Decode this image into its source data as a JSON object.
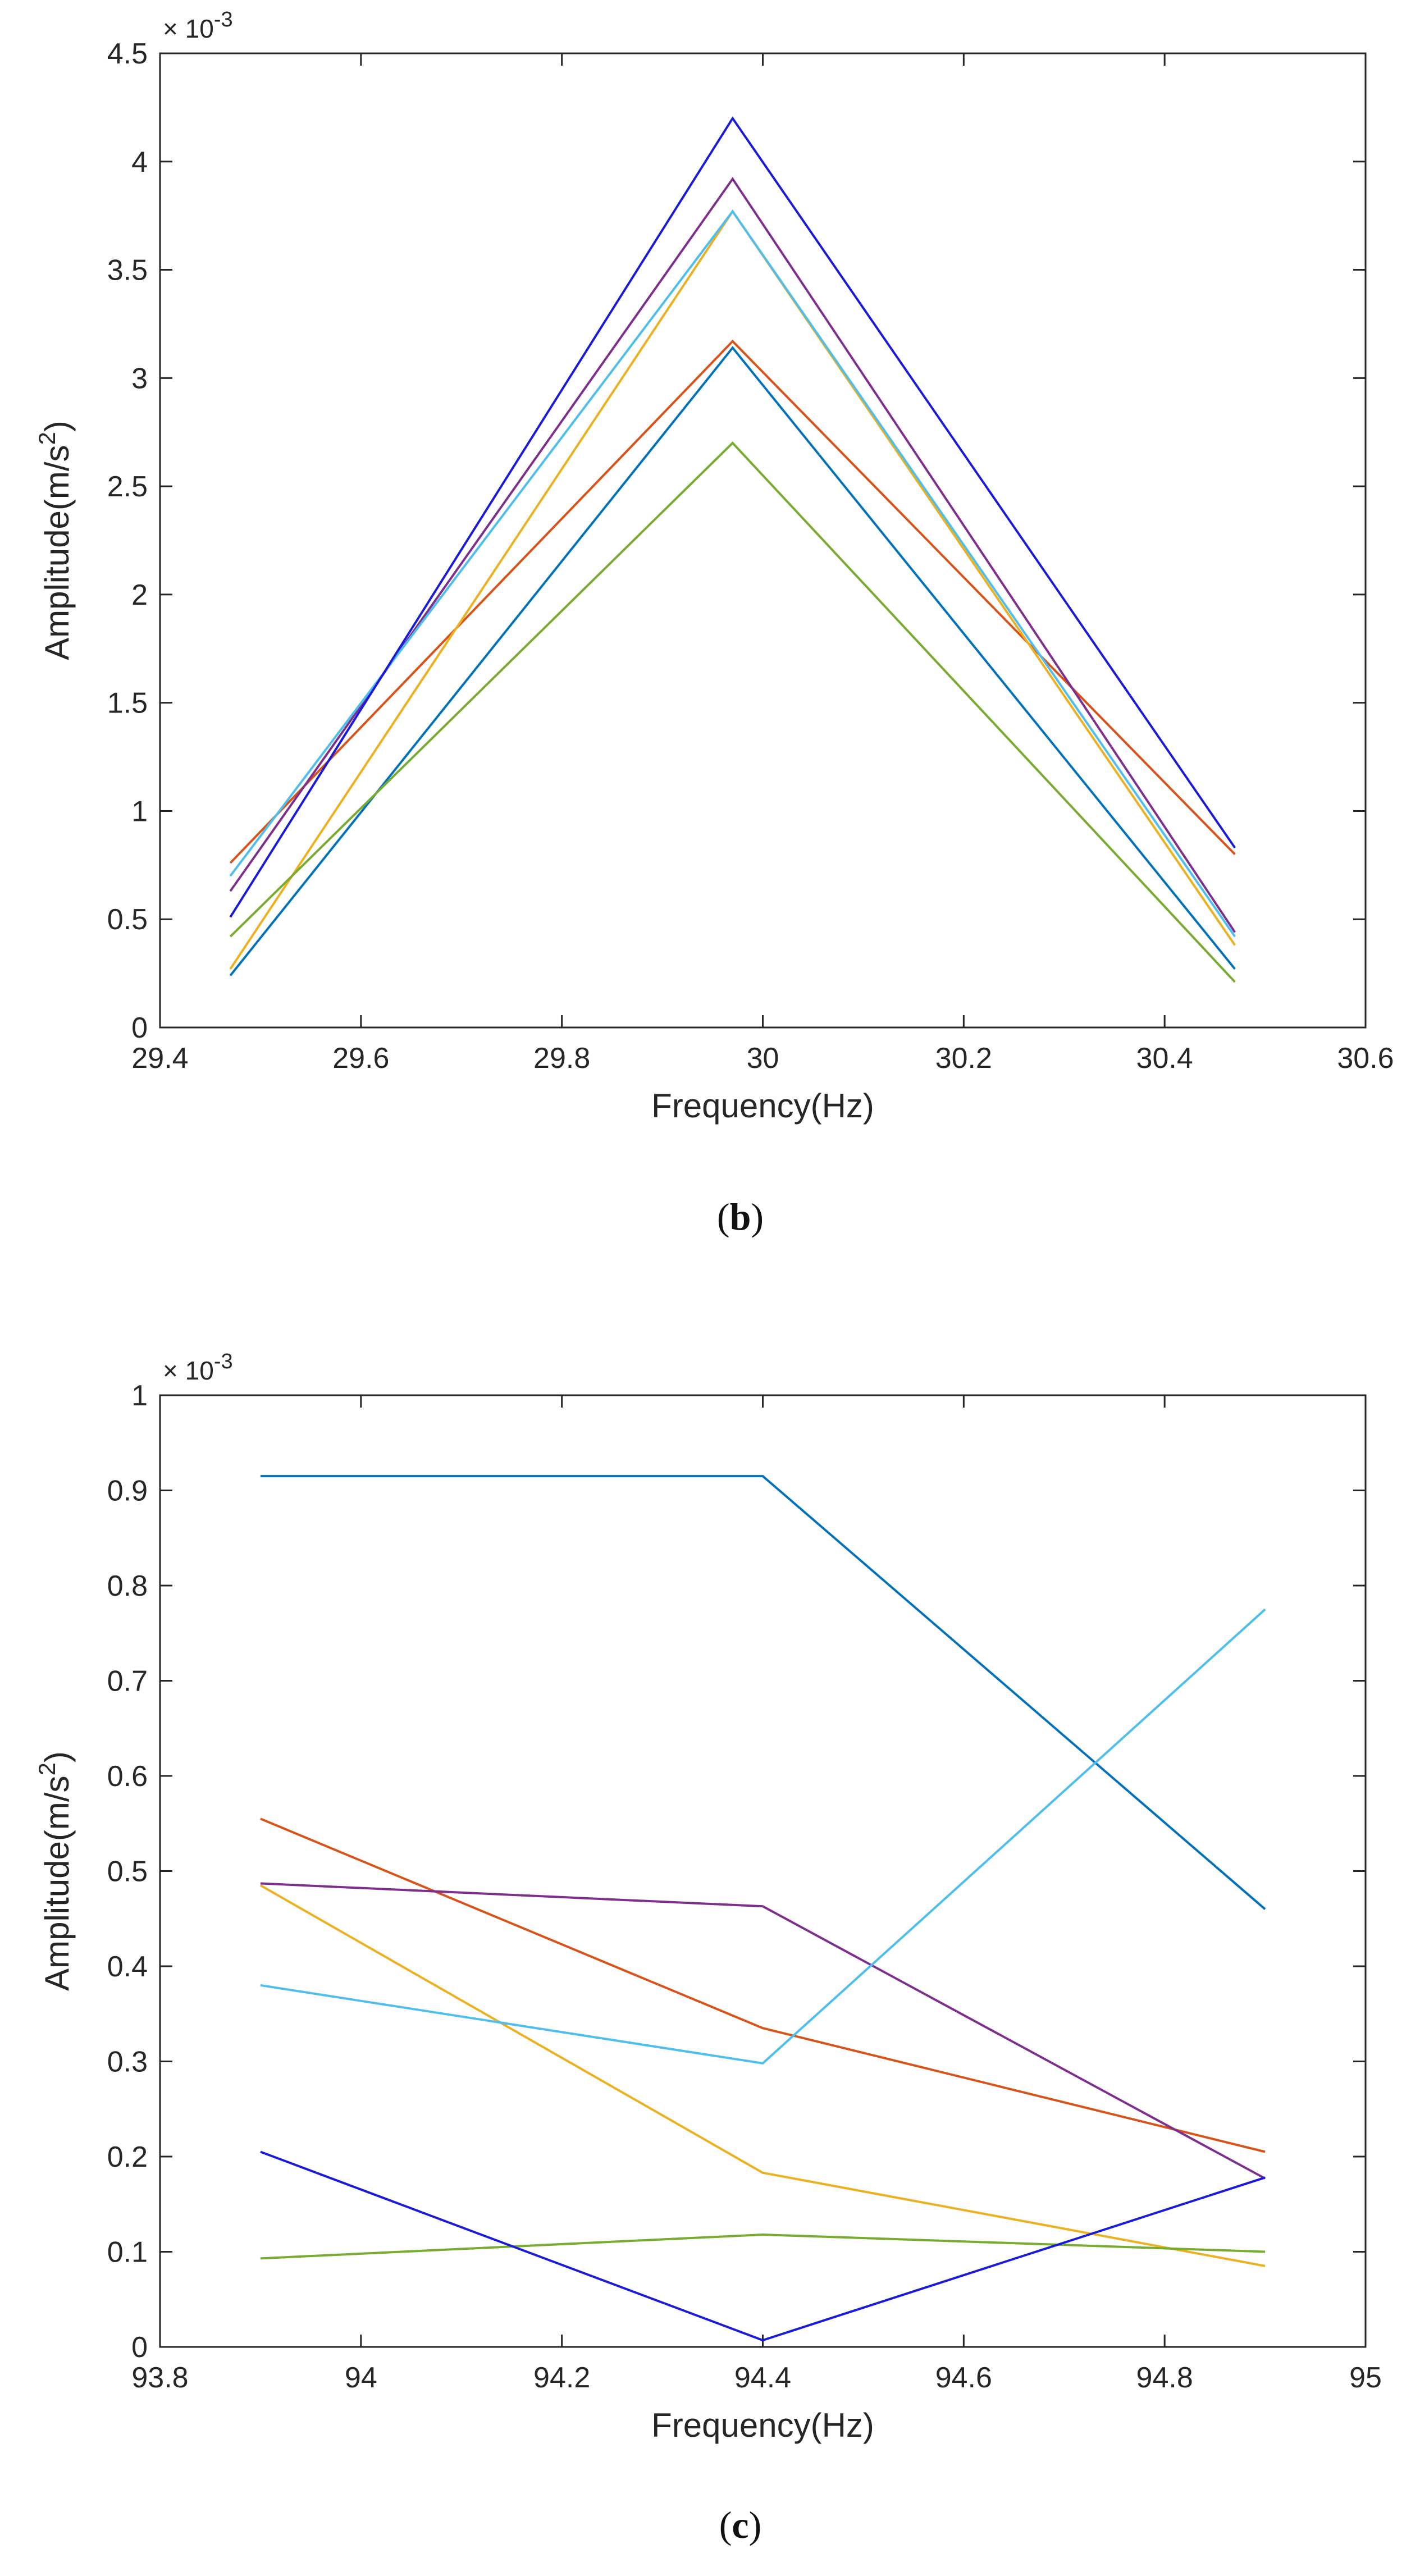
{
  "chart_data": [
    {
      "type": "line",
      "caption": "b",
      "xlabel": "Frequency(Hz)",
      "ylabel_main": "Amplitude(m/s",
      "ylabel_sup": "2",
      "ylabel_tail": ")",
      "exponent_label": "× 10",
      "exponent_power": "-3",
      "xlim": [
        29.4,
        30.6
      ],
      "ylim": [
        0,
        4.5
      ],
      "xticks": [
        29.4,
        29.6,
        29.8,
        30,
        30.2,
        30.4,
        30.6
      ],
      "xtick_labels": [
        "29.4",
        "29.6",
        "29.8",
        "30",
        "30.2",
        "30.4",
        "30.6"
      ],
      "yticks": [
        0,
        0.5,
        1,
        1.5,
        2,
        2.5,
        3,
        3.5,
        4,
        4.5
      ],
      "ytick_labels": [
        "0",
        "0.5",
        "1",
        "1.5",
        "2",
        "2.5",
        "3",
        "3.5",
        "4",
        "4.5"
      ],
      "x": [
        29.47,
        29.97,
        30.47
      ],
      "series": [
        {
          "name": "series-1",
          "color": "#0072BD",
          "values": [
            0.24,
            3.14,
            0.27
          ]
        },
        {
          "name": "series-2",
          "color": "#D95319",
          "values": [
            0.76,
            3.17,
            0.8
          ]
        },
        {
          "name": "series-3",
          "color": "#EDB120",
          "values": [
            0.27,
            3.77,
            0.38
          ]
        },
        {
          "name": "series-4",
          "color": "#7E2F8E",
          "values": [
            0.63,
            3.92,
            0.44
          ]
        },
        {
          "name": "series-5",
          "color": "#77AC30",
          "values": [
            0.42,
            2.7,
            0.21
          ]
        },
        {
          "name": "series-6",
          "color": "#4DBEEE",
          "values": [
            0.7,
            3.77,
            0.42
          ]
        },
        {
          "name": "series-7",
          "color": "#1A1ADB",
          "values": [
            0.51,
            4.2,
            0.83
          ]
        }
      ]
    },
    {
      "type": "line",
      "caption": "c",
      "xlabel": "Frequency(Hz)",
      "ylabel_main": "Amplitude(m/s",
      "ylabel_sup": "2",
      "ylabel_tail": ")",
      "exponent_label": "× 10",
      "exponent_power": "-3",
      "xlim": [
        93.8,
        95
      ],
      "ylim": [
        0,
        1
      ],
      "xticks": [
        93.8,
        94,
        94.2,
        94.4,
        94.6,
        94.8,
        95
      ],
      "xtick_labels": [
        "93.8",
        "94",
        "94.2",
        "94.4",
        "94.6",
        "94.8",
        "95"
      ],
      "yticks": [
        0,
        0.1,
        0.2,
        0.3,
        0.4,
        0.5,
        0.6,
        0.7,
        0.8,
        0.9,
        1
      ],
      "ytick_labels": [
        "0",
        "0.1",
        "0.2",
        "0.3",
        "0.4",
        "0.5",
        "0.6",
        "0.7",
        "0.8",
        "0.9",
        "1"
      ],
      "x": [
        93.9,
        94.4,
        94.9
      ],
      "series": [
        {
          "name": "series-1",
          "color": "#0072BD",
          "values": [
            0.915,
            0.915,
            0.46
          ]
        },
        {
          "name": "series-2",
          "color": "#D95319",
          "values": [
            0.555,
            0.335,
            0.205
          ]
        },
        {
          "name": "series-3",
          "color": "#EDB120",
          "values": [
            0.485,
            0.183,
            0.085
          ]
        },
        {
          "name": "series-4",
          "color": "#7E2F8E",
          "values": [
            0.487,
            0.463,
            0.177
          ]
        },
        {
          "name": "series-5",
          "color": "#77AC30",
          "values": [
            0.093,
            0.118,
            0.1
          ]
        },
        {
          "name": "series-6",
          "color": "#4DBEEE",
          "values": [
            0.38,
            0.298,
            0.775
          ]
        },
        {
          "name": "series-7",
          "color": "#1A1ADB",
          "values": [
            0.205,
            0.007,
            0.178
          ]
        }
      ]
    }
  ]
}
